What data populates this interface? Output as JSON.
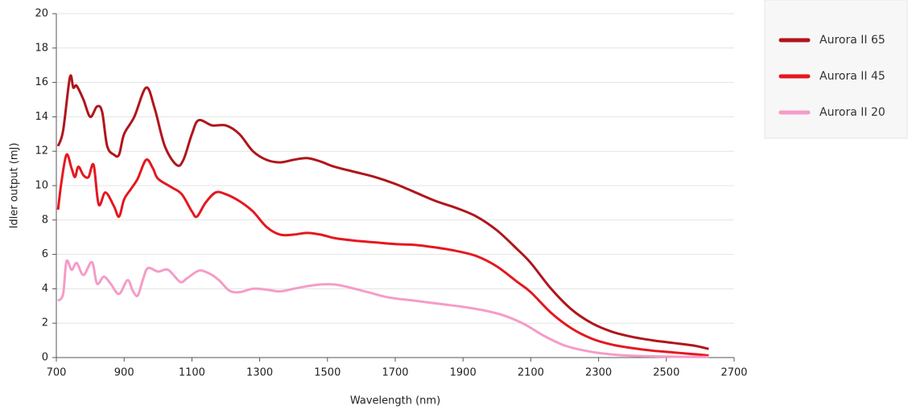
{
  "chart_data": {
    "type": "line",
    "xlabel": "Wavelength (nm)",
    "ylabel": "Idler output (mJ)",
    "xlim": [
      700,
      2700
    ],
    "xticks": [
      700,
      900,
      1100,
      1300,
      1500,
      1700,
      1900,
      2100,
      2300,
      2500,
      2700
    ],
    "ylim": [
      0,
      20
    ],
    "yticks": [
      0,
      2,
      4,
      6,
      8,
      10,
      12,
      14,
      16,
      18,
      20
    ],
    "grid": true,
    "legend": "right",
    "series": [
      {
        "name": "Aurora II 65",
        "color": "#b0151b",
        "x": [
          705,
          720,
          740,
          750,
          760,
          780,
          800,
          820,
          835,
          850,
          870,
          885,
          900,
          930,
          965,
          990,
          1020,
          1055,
          1075,
          1100,
          1120,
          1160,
          1200,
          1240,
          1280,
          1320,
          1360,
          1400,
          1440,
          1480,
          1520,
          1580,
          1640,
          1700,
          1760,
          1820,
          1880,
          1940,
          2000,
          2060,
          2100,
          2160,
          2220,
          2280,
          2340,
          2400,
          2460,
          2520,
          2580,
          2625
        ],
        "values": [
          12.3,
          13.2,
          16.3,
          15.7,
          15.8,
          15.0,
          14.0,
          14.6,
          14.3,
          12.3,
          11.8,
          11.8,
          13.0,
          14.0,
          15.7,
          14.5,
          12.3,
          11.2,
          11.5,
          13.0,
          13.8,
          13.5,
          13.5,
          13.0,
          12.0,
          11.5,
          11.35,
          11.5,
          11.6,
          11.4,
          11.1,
          10.8,
          10.5,
          10.1,
          9.6,
          9.1,
          8.7,
          8.2,
          7.4,
          6.3,
          5.5,
          4.0,
          2.8,
          2.0,
          1.5,
          1.2,
          1.0,
          0.85,
          0.7,
          0.5
        ]
      },
      {
        "name": "Aurora II 45",
        "color": "#e5171f",
        "x": [
          705,
          715,
          730,
          745,
          755,
          765,
          780,
          795,
          810,
          825,
          845,
          870,
          885,
          900,
          920,
          940,
          965,
          985,
          1000,
          1040,
          1070,
          1100,
          1115,
          1140,
          1170,
          1200,
          1240,
          1280,
          1320,
          1360,
          1400,
          1440,
          1480,
          1520,
          1580,
          1640,
          1700,
          1760,
          1820,
          1880,
          1940,
          2000,
          2060,
          2100,
          2160,
          2220,
          2280,
          2340,
          2400,
          2460,
          2520,
          2580,
          2625
        ],
        "values": [
          8.6,
          10.2,
          11.8,
          11.0,
          10.5,
          11.1,
          10.6,
          10.5,
          11.2,
          8.9,
          9.6,
          8.8,
          8.2,
          9.2,
          9.8,
          10.4,
          11.5,
          11.0,
          10.4,
          9.9,
          9.5,
          8.5,
          8.2,
          9.0,
          9.6,
          9.5,
          9.1,
          8.5,
          7.6,
          7.15,
          7.15,
          7.25,
          7.15,
          6.95,
          6.8,
          6.7,
          6.6,
          6.55,
          6.4,
          6.2,
          5.9,
          5.3,
          4.4,
          3.8,
          2.6,
          1.7,
          1.1,
          0.75,
          0.55,
          0.4,
          0.3,
          0.2,
          0.12
        ]
      },
      {
        "name": "Aurora II 20",
        "color": "#f59cc8",
        "x": [
          705,
          720,
          730,
          745,
          760,
          780,
          805,
          820,
          840,
          860,
          885,
          910,
          925,
          940,
          955,
          970,
          1000,
          1030,
          1065,
          1085,
          1120,
          1150,
          1180,
          1210,
          1240,
          1280,
          1320,
          1360,
          1400,
          1440,
          1480,
          1520,
          1560,
          1620,
          1680,
          1760,
          1840,
          1900,
          1960,
          2020,
          2080,
          2140,
          2200,
          2260,
          2320,
          2380,
          2440,
          2500,
          2560,
          2625
        ],
        "values": [
          3.3,
          3.7,
          5.6,
          5.1,
          5.5,
          4.8,
          5.55,
          4.3,
          4.7,
          4.3,
          3.7,
          4.5,
          3.9,
          3.6,
          4.5,
          5.2,
          5.0,
          5.1,
          4.4,
          4.6,
          5.05,
          4.9,
          4.5,
          3.9,
          3.8,
          4.0,
          3.95,
          3.85,
          4.0,
          4.15,
          4.25,
          4.25,
          4.1,
          3.8,
          3.5,
          3.3,
          3.1,
          2.95,
          2.75,
          2.45,
          1.95,
          1.25,
          0.7,
          0.4,
          0.22,
          0.12,
          0.08,
          0.05,
          0.04,
          0.03
        ]
      }
    ]
  }
}
